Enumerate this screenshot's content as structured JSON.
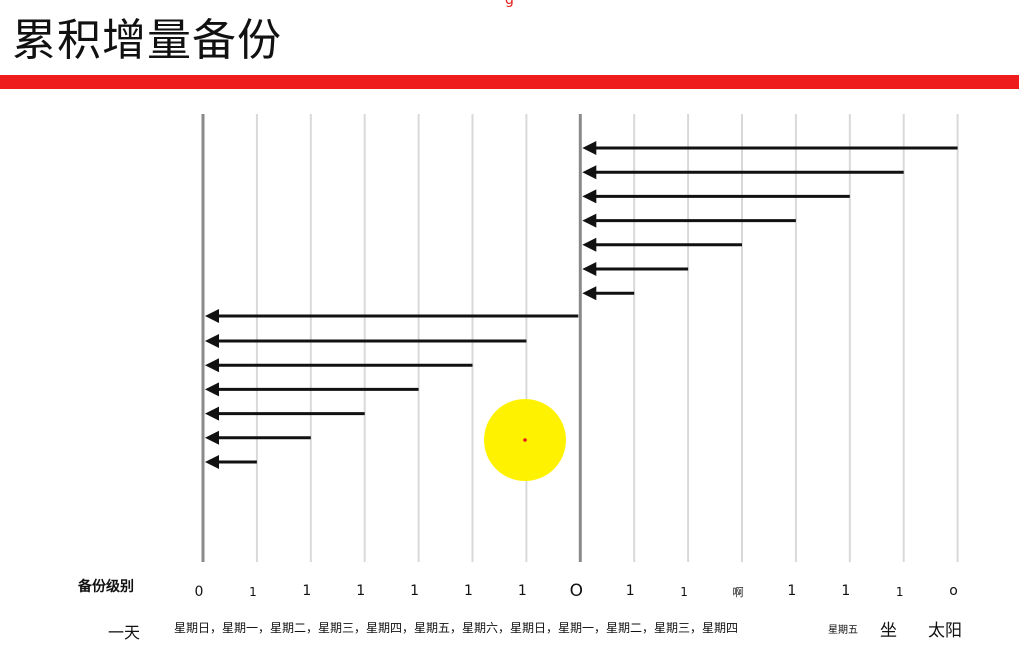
{
  "header": {
    "title": "累积增量备份",
    "top_mark": "g"
  },
  "colors": {
    "accent_bar": "#ee1c1c",
    "arrow": "#111111",
    "gridline": "#d9d9d9",
    "divider": "#8a8a8a",
    "highlight": "#fff200"
  },
  "diagram": {
    "level_label": "备份级别",
    "day_label": "一天",
    "levels": [
      "0",
      "1",
      "1",
      "1",
      "1",
      "1",
      "1",
      "O",
      "1",
      "1",
      "啊",
      "1",
      "1",
      "1",
      "o"
    ],
    "days_text": "星期日，星期一，星期二，星期三，星期四，星期五，星期六，星期日，星期一，星期二，星期三，星期四",
    "day_small": "星期五",
    "day_sat": "坐",
    "day_sun": "太阳",
    "left_arrows_span_days": [
      6,
      5,
      4,
      3,
      2,
      1
    ],
    "right_arrows_span_days": [
      7,
      6,
      5,
      4,
      3,
      2,
      1
    ]
  }
}
